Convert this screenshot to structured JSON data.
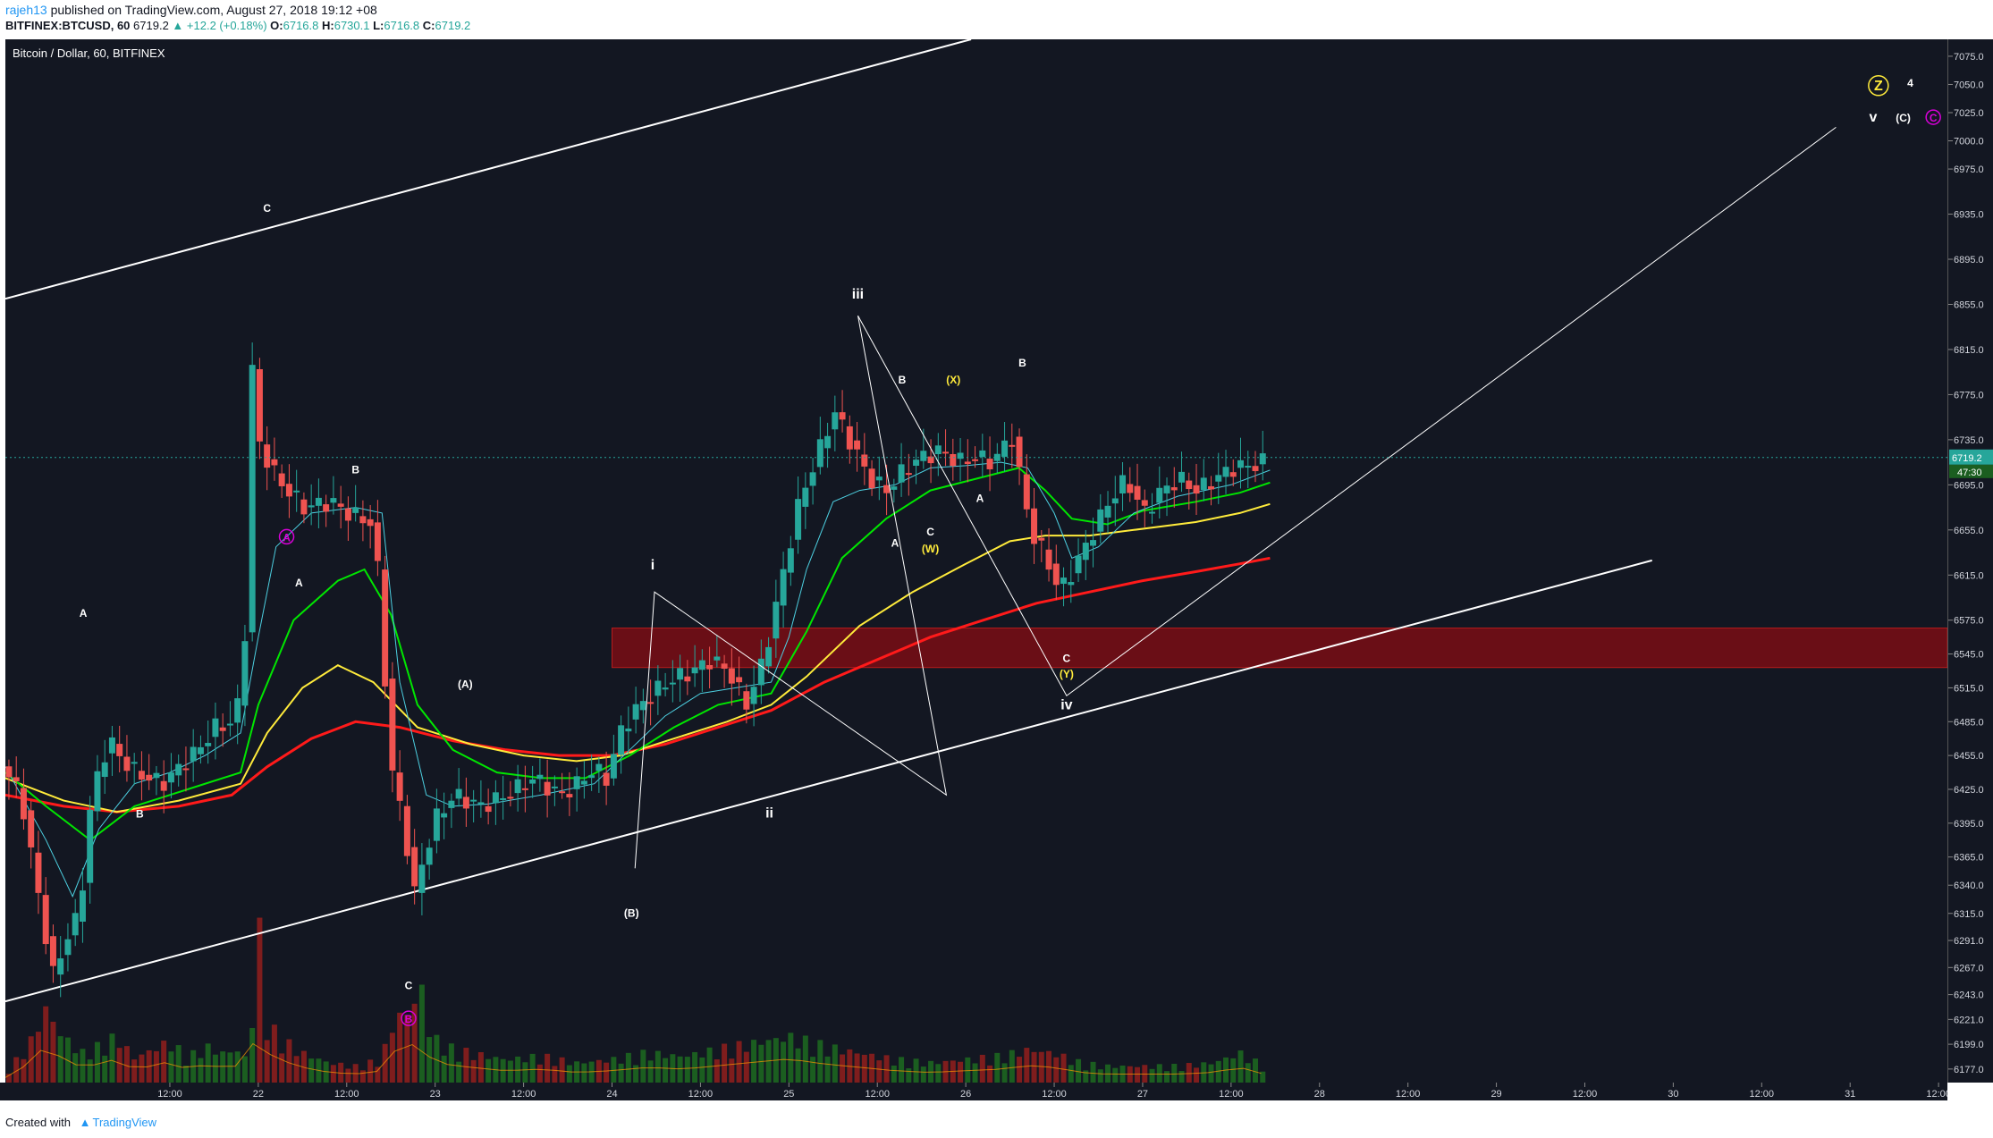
{
  "header": {
    "user": "rajeh13",
    "published": "published on TradingView.com, August 27, 2018 19:12 +08",
    "symbol": "BITFINEX:BTCUSD, 60",
    "last": "6719.2",
    "change": "▲ +12.2 (+0.18%)",
    "ohlc": [
      {
        "label": "O:",
        "value": "6716.8"
      },
      {
        "label": "H:",
        "value": "6730.1"
      },
      {
        "label": "L:",
        "value": "6716.8"
      },
      {
        "label": "C:",
        "value": "6719.2"
      }
    ]
  },
  "footer": {
    "created_with": "Created with",
    "brand": "TradingView"
  },
  "colors": {
    "background": "#131722",
    "up": "#26a69a",
    "down": "#ef5350",
    "ema_fast": "#4dd0e1",
    "ema_green": "#00e600",
    "ema_yellow": "#ffeb3b",
    "ema_red": "#ff1a1a",
    "zone": "#7a0d14",
    "wave_white": "#ffffff",
    "wave_yellow": "#ffeb3b",
    "wave_magenta": "#d900d9"
  },
  "chart_data": {
    "type": "candlestick",
    "title": "Bitcoin / Dollar, 60, BITFINEX",
    "ylim": [
      6165,
      7090
    ],
    "y_ticks": [
      "7075.0",
      "7050.0",
      "7025.0",
      "7000.0",
      "6975.0",
      "6935.0",
      "6895.0",
      "6855.0",
      "6815.0",
      "6775.0",
      "6735.0",
      "6695.0",
      "6655.0",
      "6615.0",
      "6575.0",
      "6545.0",
      "6515.0",
      "6485.0",
      "6455.0",
      "6425.0",
      "6395.0",
      "6365.0",
      "6340.0",
      "6315.0",
      "6291.0",
      "6267.0",
      "6243.0",
      "6221.0",
      "6199.0",
      "6177.0"
    ],
    "x_ticks": [
      {
        "label": "12:00",
        "x": 0.5
      },
      {
        "label": "22",
        "x": 1.0
      },
      {
        "label": "12:00",
        "x": 1.5
      },
      {
        "label": "23",
        "x": 2.0
      },
      {
        "label": "12:00",
        "x": 2.5
      },
      {
        "label": "24",
        "x": 3.0
      },
      {
        "label": "12:00",
        "x": 3.5
      },
      {
        "label": "25",
        "x": 4.0
      },
      {
        "label": "12:00",
        "x": 4.5
      },
      {
        "label": "26",
        "x": 5.0
      },
      {
        "label": "12:00",
        "x": 5.5
      },
      {
        "label": "27",
        "x": 6.0
      },
      {
        "label": "12:00",
        "x": 6.5
      },
      {
        "label": "28",
        "x": 7.0
      },
      {
        "label": "12:00",
        "x": 7.5
      },
      {
        "label": "29",
        "x": 8.0
      },
      {
        "label": "12:00",
        "x": 8.5
      },
      {
        "label": "30",
        "x": 9.0
      },
      {
        "label": "12:00",
        "x": 9.5
      },
      {
        "label": "31",
        "x": 10.0
      },
      {
        "label": "12:00",
        "x": 10.5
      }
    ],
    "x_range": [
      -0.43,
      10.55
    ],
    "last_price": "6719.2",
    "countdown": "47:30",
    "price_path": [
      [
        -0.43,
        6450
      ],
      [
        -0.3,
        6420
      ],
      [
        -0.2,
        6330
      ],
      [
        -0.12,
        6260
      ],
      [
        0.0,
        6310
      ],
      [
        0.03,
        6300
      ],
      [
        0.05,
        6345
      ],
      [
        0.1,
        6420
      ],
      [
        0.15,
        6445
      ],
      [
        0.2,
        6470
      ],
      [
        0.25,
        6455
      ],
      [
        0.35,
        6440
      ],
      [
        0.5,
        6430
      ],
      [
        0.6,
        6445
      ],
      [
        0.7,
        6460
      ],
      [
        0.8,
        6480
      ],
      [
        0.9,
        6485
      ],
      [
        0.96,
        6520
      ],
      [
        1.0,
        6810
      ],
      [
        1.05,
        6730
      ],
      [
        1.15,
        6700
      ],
      [
        1.3,
        6675
      ],
      [
        1.45,
        6680
      ],
      [
        1.55,
        6670
      ],
      [
        1.7,
        6660
      ],
      [
        1.75,
        6540
      ],
      [
        1.8,
        6440
      ],
      [
        1.87,
        6390
      ],
      [
        1.92,
        6330
      ],
      [
        1.97,
        6360
      ],
      [
        2.05,
        6400
      ],
      [
        2.15,
        6420
      ],
      [
        2.3,
        6410
      ],
      [
        2.45,
        6420
      ],
      [
        2.6,
        6435
      ],
      [
        2.75,
        6420
      ],
      [
        2.85,
        6430
      ],
      [
        2.95,
        6445
      ],
      [
        3.0,
        6430
      ],
      [
        3.1,
        6480
      ],
      [
        3.2,
        6500
      ],
      [
        3.35,
        6520
      ],
      [
        3.5,
        6530
      ],
      [
        3.6,
        6540
      ],
      [
        3.7,
        6530
      ],
      [
        3.8,
        6500
      ],
      [
        3.9,
        6540
      ],
      [
        4.0,
        6610
      ],
      [
        4.1,
        6680
      ],
      [
        4.2,
        6720
      ],
      [
        4.3,
        6760
      ],
      [
        4.4,
        6730
      ],
      [
        4.5,
        6700
      ],
      [
        4.6,
        6690
      ],
      [
        4.7,
        6710
      ],
      [
        4.8,
        6720
      ],
      [
        4.9,
        6725
      ],
      [
        5.0,
        6715
      ],
      [
        5.1,
        6720
      ],
      [
        5.2,
        6715
      ],
      [
        5.3,
        6740
      ],
      [
        5.35,
        6700
      ],
      [
        5.42,
        6650
      ],
      [
        5.5,
        6630
      ],
      [
        5.57,
        6600
      ],
      [
        5.65,
        6620
      ],
      [
        5.75,
        6650
      ],
      [
        5.85,
        6680
      ],
      [
        5.95,
        6700
      ],
      [
        6.05,
        6670
      ],
      [
        6.15,
        6690
      ],
      [
        6.25,
        6700
      ],
      [
        6.35,
        6690
      ],
      [
        6.45,
        6700
      ],
      [
        6.55,
        6710
      ],
      [
        6.65,
        6712
      ],
      [
        6.72,
        6715
      ]
    ],
    "volume_path": [
      [
        -0.43,
        0.06
      ],
      [
        -0.3,
        0.22
      ],
      [
        -0.2,
        0.45
      ],
      [
        -0.12,
        0.3
      ],
      [
        0.0,
        0.18
      ],
      [
        0.1,
        0.22
      ],
      [
        0.2,
        0.28
      ],
      [
        0.3,
        0.15
      ],
      [
        0.4,
        0.2
      ],
      [
        0.5,
        0.25
      ],
      [
        0.6,
        0.15
      ],
      [
        0.7,
        0.22
      ],
      [
        0.8,
        0.18
      ],
      [
        0.9,
        0.2
      ],
      [
        0.95,
        0.1
      ],
      [
        1.0,
        1.0
      ],
      [
        1.05,
        0.35
      ],
      [
        1.15,
        0.25
      ],
      [
        1.25,
        0.18
      ],
      [
        1.4,
        0.12
      ],
      [
        1.55,
        0.1
      ],
      [
        1.7,
        0.14
      ],
      [
        1.75,
        0.35
      ],
      [
        1.8,
        0.4
      ],
      [
        1.87,
        0.45
      ],
      [
        1.92,
        0.6
      ],
      [
        1.97,
        0.3
      ],
      [
        2.05,
        0.22
      ],
      [
        2.2,
        0.18
      ],
      [
        2.4,
        0.14
      ],
      [
        2.6,
        0.16
      ],
      [
        2.8,
        0.12
      ],
      [
        3.0,
        0.14
      ],
      [
        3.2,
        0.18
      ],
      [
        3.4,
        0.16
      ],
      [
        3.6,
        0.2
      ],
      [
        3.8,
        0.24
      ],
      [
        4.0,
        0.28
      ],
      [
        4.2,
        0.22
      ],
      [
        4.4,
        0.18
      ],
      [
        4.6,
        0.14
      ],
      [
        4.8,
        0.12
      ],
      [
        5.0,
        0.14
      ],
      [
        5.2,
        0.16
      ],
      [
        5.35,
        0.2
      ],
      [
        5.5,
        0.18
      ],
      [
        5.65,
        0.12
      ],
      [
        5.8,
        0.1
      ],
      [
        6.0,
        0.1
      ],
      [
        6.2,
        0.1
      ],
      [
        6.4,
        0.12
      ],
      [
        6.55,
        0.18
      ],
      [
        6.72,
        0.08
      ]
    ],
    "ema_fast": [
      [
        -0.43,
        6445
      ],
      [
        -0.2,
        6380
      ],
      [
        -0.05,
        6330
      ],
      [
        0.1,
        6390
      ],
      [
        0.3,
        6430
      ],
      [
        0.5,
        6440
      ],
      [
        0.7,
        6455
      ],
      [
        0.9,
        6475
      ],
      [
        1.0,
        6560
      ],
      [
        1.1,
        6640
      ],
      [
        1.3,
        6670
      ],
      [
        1.55,
        6675
      ],
      [
        1.7,
        6670
      ],
      [
        1.8,
        6520
      ],
      [
        1.95,
        6420
      ],
      [
        2.1,
        6410
      ],
      [
        2.3,
        6412
      ],
      [
        2.6,
        6420
      ],
      [
        2.9,
        6430
      ],
      [
        3.1,
        6460
      ],
      [
        3.3,
        6490
      ],
      [
        3.5,
        6510
      ],
      [
        3.7,
        6515
      ],
      [
        3.9,
        6520
      ],
      [
        4.0,
        6560
      ],
      [
        4.1,
        6620
      ],
      [
        4.25,
        6680
      ],
      [
        4.4,
        6690
      ],
      [
        4.6,
        6695
      ],
      [
        4.8,
        6710
      ],
      [
        5.0,
        6712
      ],
      [
        5.2,
        6715
      ],
      [
        5.35,
        6710
      ],
      [
        5.5,
        6670
      ],
      [
        5.6,
        6630
      ],
      [
        5.75,
        6640
      ],
      [
        5.95,
        6670
      ],
      [
        6.2,
        6685
      ],
      [
        6.5,
        6695
      ],
      [
        6.72,
        6708
      ]
    ],
    "ema_green": [
      [
        -0.43,
        6440
      ],
      [
        -0.2,
        6410
      ],
      [
        0.05,
        6380
      ],
      [
        0.3,
        6410
      ],
      [
        0.6,
        6425
      ],
      [
        0.9,
        6440
      ],
      [
        1.0,
        6500
      ],
      [
        1.2,
        6575
      ],
      [
        1.45,
        6610
      ],
      [
        1.6,
        6620
      ],
      [
        1.75,
        6580
      ],
      [
        1.9,
        6500
      ],
      [
        2.1,
        6460
      ],
      [
        2.35,
        6440
      ],
      [
        2.6,
        6435
      ],
      [
        2.85,
        6435
      ],
      [
        3.1,
        6455
      ],
      [
        3.35,
        6480
      ],
      [
        3.6,
        6500
      ],
      [
        3.9,
        6510
      ],
      [
        4.1,
        6565
      ],
      [
        4.3,
        6630
      ],
      [
        4.55,
        6665
      ],
      [
        4.8,
        6690
      ],
      [
        5.05,
        6700
      ],
      [
        5.3,
        6710
      ],
      [
        5.45,
        6690
      ],
      [
        5.6,
        6665
      ],
      [
        5.8,
        6660
      ],
      [
        6.0,
        6672
      ],
      [
        6.3,
        6680
      ],
      [
        6.55,
        6688
      ],
      [
        6.72,
        6697
      ]
    ],
    "ema_yellow": [
      [
        -0.43,
        6435
      ],
      [
        -0.1,
        6415
      ],
      [
        0.2,
        6405
      ],
      [
        0.55,
        6415
      ],
      [
        0.9,
        6430
      ],
      [
        1.05,
        6475
      ],
      [
        1.25,
        6515
      ],
      [
        1.45,
        6535
      ],
      [
        1.65,
        6520
      ],
      [
        1.9,
        6480
      ],
      [
        2.2,
        6465
      ],
      [
        2.5,
        6455
      ],
      [
        2.8,
        6450
      ],
      [
        3.05,
        6455
      ],
      [
        3.35,
        6470
      ],
      [
        3.65,
        6485
      ],
      [
        3.9,
        6500
      ],
      [
        4.1,
        6525
      ],
      [
        4.4,
        6570
      ],
      [
        4.7,
        6600
      ],
      [
        5.0,
        6625
      ],
      [
        5.25,
        6645
      ],
      [
        5.45,
        6650
      ],
      [
        5.7,
        6650
      ],
      [
        5.95,
        6655
      ],
      [
        6.3,
        6662
      ],
      [
        6.55,
        6670
      ],
      [
        6.72,
        6678
      ]
    ],
    "ema_red": [
      [
        -0.43,
        6420
      ],
      [
        -0.1,
        6410
      ],
      [
        0.2,
        6405
      ],
      [
        0.55,
        6410
      ],
      [
        0.85,
        6420
      ],
      [
        1.05,
        6445
      ],
      [
        1.3,
        6470
      ],
      [
        1.55,
        6485
      ],
      [
        1.8,
        6480
      ],
      [
        2.1,
        6468
      ],
      [
        2.4,
        6460
      ],
      [
        2.7,
        6455
      ],
      [
        3.0,
        6455
      ],
      [
        3.3,
        6465
      ],
      [
        3.6,
        6480
      ],
      [
        3.9,
        6495
      ],
      [
        4.2,
        6520
      ],
      [
        4.5,
        6540
      ],
      [
        4.8,
        6560
      ],
      [
        5.1,
        6575
      ],
      [
        5.4,
        6590
      ],
      [
        5.7,
        6600
      ],
      [
        6.0,
        6610
      ],
      [
        6.3,
        6618
      ],
      [
        6.55,
        6625
      ],
      [
        6.72,
        6630
      ]
    ],
    "channel_upper": [
      [
        -0.43,
        6860
      ],
      [
        5.03,
        7090
      ]
    ],
    "channel_lower": [
      [
        -0.43,
        6237
      ],
      [
        8.88,
        6628
      ]
    ],
    "fib_zone": {
      "x": [
        3.0,
        10.55
      ],
      "y": [
        6533,
        6568
      ]
    },
    "wave_path": [
      [
        3.13,
        6355
      ],
      [
        3.24,
        6600
      ],
      [
        4.89,
        6420
      ],
      [
        4.39,
        6845
      ],
      [
        5.57,
        6508
      ],
      [
        9.92,
        7012
      ]
    ],
    "wave_labels": [
      {
        "t": "A",
        "x": 0.01,
        "y": 6578,
        "c": "w"
      },
      {
        "t": "B",
        "x": 0.33,
        "y": 6400,
        "c": "w"
      },
      {
        "t": "A",
        "x": 1.16,
        "y": 6645,
        "c": "m",
        "circle": true
      },
      {
        "t": "C",
        "x": 1.05,
        "y": 6937,
        "c": "w"
      },
      {
        "t": "A",
        "x": 1.23,
        "y": 6605,
        "c": "w"
      },
      {
        "t": "B",
        "x": 1.55,
        "y": 6705,
        "c": "w"
      },
      {
        "t": "(A)",
        "x": 2.17,
        "y": 6515,
        "c": "w"
      },
      {
        "t": "C",
        "x": 1.85,
        "y": 6248,
        "c": "w"
      },
      {
        "t": "B",
        "x": 1.85,
        "y": 6218,
        "c": "m",
        "circle": true
      },
      {
        "t": "(B)",
        "x": 3.11,
        "y": 6312,
        "c": "w"
      },
      {
        "t": "i",
        "x": 3.23,
        "y": 6620,
        "c": "w",
        "big": true
      },
      {
        "t": "ii",
        "x": 3.89,
        "y": 6400,
        "c": "w",
        "big": true
      },
      {
        "t": "iii",
        "x": 4.39,
        "y": 6860,
        "c": "w",
        "big": true
      },
      {
        "t": "B",
        "x": 4.64,
        "y": 6785,
        "c": "w"
      },
      {
        "t": "A",
        "x": 4.6,
        "y": 6640,
        "c": "w"
      },
      {
        "t": "C",
        "x": 4.8,
        "y": 6650,
        "c": "w"
      },
      {
        "t": "(W)",
        "x": 4.8,
        "y": 6635,
        "c": "y"
      },
      {
        "t": "(X)",
        "x": 4.93,
        "y": 6785,
        "c": "y"
      },
      {
        "t": "A",
        "x": 5.08,
        "y": 6680,
        "c": "w"
      },
      {
        "t": "B",
        "x": 5.32,
        "y": 6800,
        "c": "w"
      },
      {
        "t": "C",
        "x": 5.57,
        "y": 6538,
        "c": "w"
      },
      {
        "t": "(Y)",
        "x": 5.57,
        "y": 6524,
        "c": "y"
      },
      {
        "t": "iv",
        "x": 5.57,
        "y": 6496,
        "c": "w",
        "big": true
      },
      {
        "t": "Z",
        "x": 10.16,
        "y": 7045,
        "c": "y",
        "circle": true
      },
      {
        "t": "4",
        "x": 10.34,
        "y": 7048,
        "c": "w"
      },
      {
        "t": "v",
        "x": 10.13,
        "y": 7017,
        "c": "w",
        "big": true
      },
      {
        "t": "(C)",
        "x": 10.3,
        "y": 7017,
        "c": "w"
      },
      {
        "t": "C",
        "x": 10.47,
        "y": 7017,
        "c": "m",
        "circle": true
      }
    ]
  }
}
